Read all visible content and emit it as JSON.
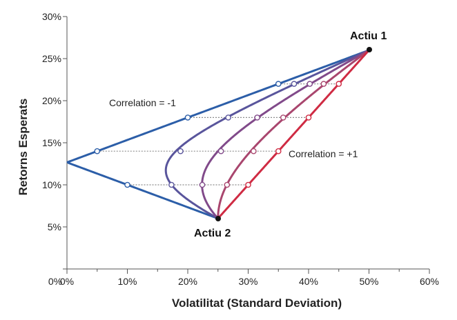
{
  "chart_data": {
    "type": "line",
    "xlabel": "Volatilitat (Standard Deviation)",
    "ylabel": "Retorns Esperats",
    "xlim": [
      0,
      60
    ],
    "ylim": [
      0,
      30
    ],
    "x_ticks": [
      "0%",
      "10%",
      "20%",
      "30%",
      "40%",
      "50%",
      "60%"
    ],
    "y_ticks": [
      "5%",
      "10%",
      "15%",
      "20%",
      "25%",
      "30%"
    ],
    "grid": false,
    "assets": [
      {
        "name": "Actiu 1",
        "volatility": 50,
        "return": 26
      },
      {
        "name": "Actiu 2",
        "volatility": 25,
        "return": 6
      }
    ],
    "annotations": [
      {
        "text": "Correlation = -1",
        "near_series": "rho=-1"
      },
      {
        "text": "Correlation = +1",
        "near_series": "rho=+1"
      }
    ],
    "series": [
      {
        "correlation": -1,
        "color": "#2c5ea8"
      },
      {
        "correlation": -0.5,
        "color": "#59559c"
      },
      {
        "correlation": 0,
        "color": "#814a8a"
      },
      {
        "correlation": 0.5,
        "color": "#a9466e"
      },
      {
        "correlation": 1,
        "color": "#cf2b43"
      }
    ],
    "weight_steps": [
      {
        "return": 22,
        "points": [
          {
            "x": 35,
            "y": 22
          },
          {
            "x": 37.6,
            "y": 22
          },
          {
            "x": 40.2,
            "y": 22
          },
          {
            "x": 42.5,
            "y": 22
          },
          {
            "x": 45,
            "y": 22
          }
        ]
      },
      {
        "return": 18,
        "points": [
          {
            "x": 20,
            "y": 18
          },
          {
            "x": 26.7,
            "y": 18
          },
          {
            "x": 31.5,
            "y": 18
          },
          {
            "x": 35.8,
            "y": 18
          },
          {
            "x": 40,
            "y": 18
          }
        ]
      },
      {
        "return": 14,
        "points": [
          {
            "x": 5,
            "y": 14
          },
          {
            "x": 18.8,
            "y": 14
          },
          {
            "x": 25.5,
            "y": 14
          },
          {
            "x": 30.9,
            "y": 14
          },
          {
            "x": 35,
            "y": 14
          }
        ]
      },
      {
        "return": 10,
        "points": [
          {
            "x": 10,
            "y": 10
          },
          {
            "x": 17.3,
            "y": 10
          },
          {
            "x": 22.4,
            "y": 10
          },
          {
            "x": 26.5,
            "y": 10
          },
          {
            "x": 30,
            "y": 10
          }
        ]
      }
    ]
  }
}
